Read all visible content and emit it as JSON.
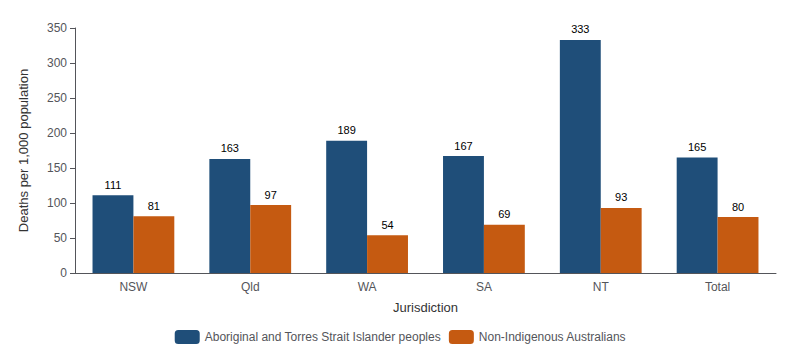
{
  "chart_data": {
    "type": "bar",
    "xlabel": "Jurisdiction",
    "ylabel": "Deaths per 1,000 population",
    "categories": [
      "NSW",
      "Qld",
      "WA",
      "SA",
      "NT",
      "Total"
    ],
    "series": [
      {
        "name": "Aboriginal and Torres Strait Islander peoples",
        "color": "#1F4E79",
        "values": [
          111,
          163,
          189,
          167,
          333,
          165
        ]
      },
      {
        "name": "Non-Indigenous Australians",
        "color": "#C55A11",
        "values": [
          81,
          97,
          54,
          69,
          93,
          80
        ]
      }
    ],
    "ylim": [
      0,
      350
    ],
    "yticks": [
      0,
      50,
      100,
      150,
      200,
      250,
      300,
      350
    ],
    "data_labels": true,
    "grid": false,
    "legend": "bottom"
  }
}
